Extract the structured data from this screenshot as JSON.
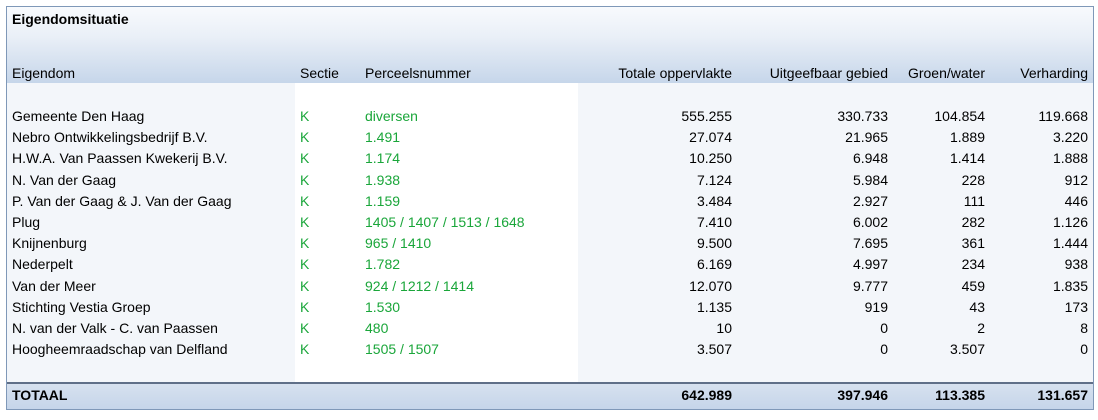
{
  "title": "Eigendomsituatie",
  "headers": {
    "eigendom": "Eigendom",
    "sectie": "Sectie",
    "perceel": "Perceelsnummer",
    "totaal": "Totale oppervlakte",
    "uitgeef": "Uitgeefbaar gebied",
    "groen": "Groen/water",
    "verharding": "Verharding"
  },
  "rows": [
    {
      "eigendom": "Gemeente Den Haag",
      "sectie": "K",
      "perceel": "diversen",
      "totaal": "555.255",
      "uitgeef": "330.733",
      "groen": "104.854",
      "verharding": "119.668"
    },
    {
      "eigendom": "Nebro Ontwikkelingsbedrijf B.V.",
      "sectie": "K",
      "perceel": "1.491",
      "totaal": "27.074",
      "uitgeef": "21.965",
      "groen": "1.889",
      "verharding": "3.220"
    },
    {
      "eigendom": "H.W.A. Van Paassen Kwekerij B.V.",
      "sectie": "K",
      "perceel": "1.174",
      "totaal": "10.250",
      "uitgeef": "6.948",
      "groen": "1.414",
      "verharding": "1.888"
    },
    {
      "eigendom": "N. Van der Gaag",
      "sectie": "K",
      "perceel": "1.938",
      "totaal": "7.124",
      "uitgeef": "5.984",
      "groen": "228",
      "verharding": "912"
    },
    {
      "eigendom": "P. Van der Gaag & J. Van der Gaag",
      "sectie": "K",
      "perceel": "1.159",
      "totaal": "3.484",
      "uitgeef": "2.927",
      "groen": "111",
      "verharding": "446"
    },
    {
      "eigendom": "Plug",
      "sectie": "K",
      "perceel": "1405 / 1407 / 1513 / 1648",
      "totaal": "7.410",
      "uitgeef": "6.002",
      "groen": "282",
      "verharding": "1.126"
    },
    {
      "eigendom": "Knijnenburg",
      "sectie": "K",
      "perceel": "965 / 1410",
      "totaal": "9.500",
      "uitgeef": "7.695",
      "groen": "361",
      "verharding": "1.444"
    },
    {
      "eigendom": "Nederpelt",
      "sectie": "K",
      "perceel": "1.782",
      "totaal": "6.169",
      "uitgeef": "4.997",
      "groen": "234",
      "verharding": "938"
    },
    {
      "eigendom": "Van der Meer",
      "sectie": "K",
      "perceel": "924 / 1212 / 1414",
      "totaal": "12.070",
      "uitgeef": "9.777",
      "groen": "459",
      "verharding": "1.835"
    },
    {
      "eigendom": "Stichting Vestia Groep",
      "sectie": "K",
      "perceel": "1.530",
      "totaal": "1.135",
      "uitgeef": "919",
      "groen": "43",
      "verharding": "173"
    },
    {
      "eigendom": "N. van der Valk - C. van Paassen",
      "sectie": "K",
      "perceel": "480",
      "totaal": "10",
      "uitgeef": "0",
      "groen": "2",
      "verharding": "8"
    },
    {
      "eigendom": "Hoogheemraadschap van Delfland",
      "sectie": "K",
      "perceel": "1505 / 1507",
      "totaal": "3.507",
      "uitgeef": "0",
      "groen": "3.507",
      "verharding": "0"
    }
  ],
  "total": {
    "label": "TOTAAL",
    "totaal": "642.989",
    "uitgeef": "397.946",
    "groen": "113.385",
    "verharding": "131.657"
  }
}
